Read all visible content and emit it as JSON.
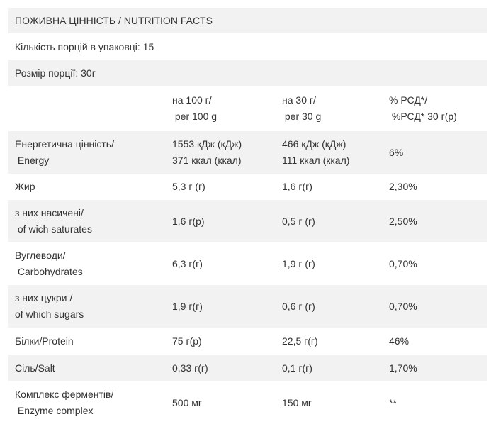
{
  "title": "ПОЖИВНА ЦІННІСТЬ / NUTRITION FACTS",
  "servings_per_pack": "Кількість порцій в упаковці: 15",
  "serving_size": "Розмір порції: 30г",
  "columns": [
    [
      "на 100 г/",
      " per 100 g"
    ],
    [
      "на 30 г/",
      " per 30 g"
    ],
    [
      "% РСД*/",
      " %РСД* 30 г(р)"
    ]
  ],
  "rows": [
    {
      "name": [
        "Енергетична цінність/",
        " Energy"
      ],
      "per100": [
        "1553 кДж (кДж)",
        "371 ккал (ккал)"
      ],
      "per30": [
        "466 кДж (кДж)",
        "111 ккал (ккал)"
      ],
      "rda": [
        "6%"
      ]
    },
    {
      "name": [
        "Жир"
      ],
      "per100": [
        "5,3 г (г)"
      ],
      "per30": [
        "1,6 г(г)"
      ],
      "rda": [
        "2,30%"
      ]
    },
    {
      "name": [
        "з них насичені/",
        " of wich saturates"
      ],
      "per100": [
        "1,6 г(р)"
      ],
      "per30": [
        "0,5 г (г)"
      ],
      "rda": [
        "2,50%"
      ]
    },
    {
      "name": [
        "Вуглеводи/",
        " Carbohydrates"
      ],
      "per100": [
        "6,3 г(г)"
      ],
      "per30": [
        "1,9 г (г)"
      ],
      "rda": [
        "0,70%"
      ]
    },
    {
      "name": [
        "з них цукри /",
        "of which sugars"
      ],
      "per100": [
        "1,9 г(г)"
      ],
      "per30": [
        "0,6 г (г)"
      ],
      "rda": [
        "0,70%"
      ]
    },
    {
      "name": [
        "Білки/Protein"
      ],
      "per100": [
        "75 г(р)"
      ],
      "per30": [
        "22,5 г(г)"
      ],
      "rda": [
        "46%"
      ]
    },
    {
      "name": [
        "Сіль/Salt"
      ],
      "per100": [
        "0,33 г(г)"
      ],
      "per30": [
        "0,1 г(г)"
      ],
      "rda": [
        "1,70%"
      ]
    },
    {
      "name": [
        "Комплекс ферментів/",
        " Enzyme complex"
      ],
      "per100": [
        "500 мг"
      ],
      "per30": [
        "150 мг"
      ],
      "rda": [
        "**"
      ]
    }
  ]
}
